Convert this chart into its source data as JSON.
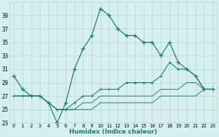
{
  "xlabel": "Humidex (Indice chaleur)",
  "x": [
    0,
    1,
    2,
    3,
    4,
    5,
    6,
    7,
    8,
    9,
    10,
    11,
    12,
    13,
    14,
    15,
    16,
    17,
    18,
    19,
    20,
    21,
    22,
    23
  ],
  "line1": [
    30,
    28,
    27,
    27,
    26,
    23,
    26,
    31,
    34,
    36,
    40,
    39,
    37,
    36,
    36,
    35,
    35,
    33,
    35,
    32,
    31,
    30,
    28,
    28
  ],
  "line2": [
    27,
    27,
    27,
    27,
    26,
    25,
    25,
    26,
    27,
    27,
    28,
    28,
    28,
    29,
    29,
    29,
    29,
    30,
    32,
    31,
    31,
    30,
    28,
    28
  ],
  "line3": [
    27,
    27,
    27,
    27,
    26,
    25,
    25,
    25,
    26,
    26,
    27,
    27,
    27,
    27,
    27,
    27,
    27,
    28,
    28,
    28,
    29,
    29,
    28,
    28
  ],
  "line4": [
    27,
    27,
    27,
    27,
    26,
    25,
    25,
    25,
    25,
    25,
    26,
    26,
    26,
    26,
    26,
    26,
    26,
    27,
    27,
    27,
    27,
    27,
    28,
    28
  ],
  "line_color": "#1a7a6e",
  "bg_color": "#d6f0f0",
  "grid_color": "#b5cece",
  "ylim": [
    23,
    41
  ],
  "yticks": [
    23,
    25,
    27,
    29,
    31,
    33,
    35,
    37,
    39
  ],
  "xlim": [
    -0.5,
    23.5
  ]
}
